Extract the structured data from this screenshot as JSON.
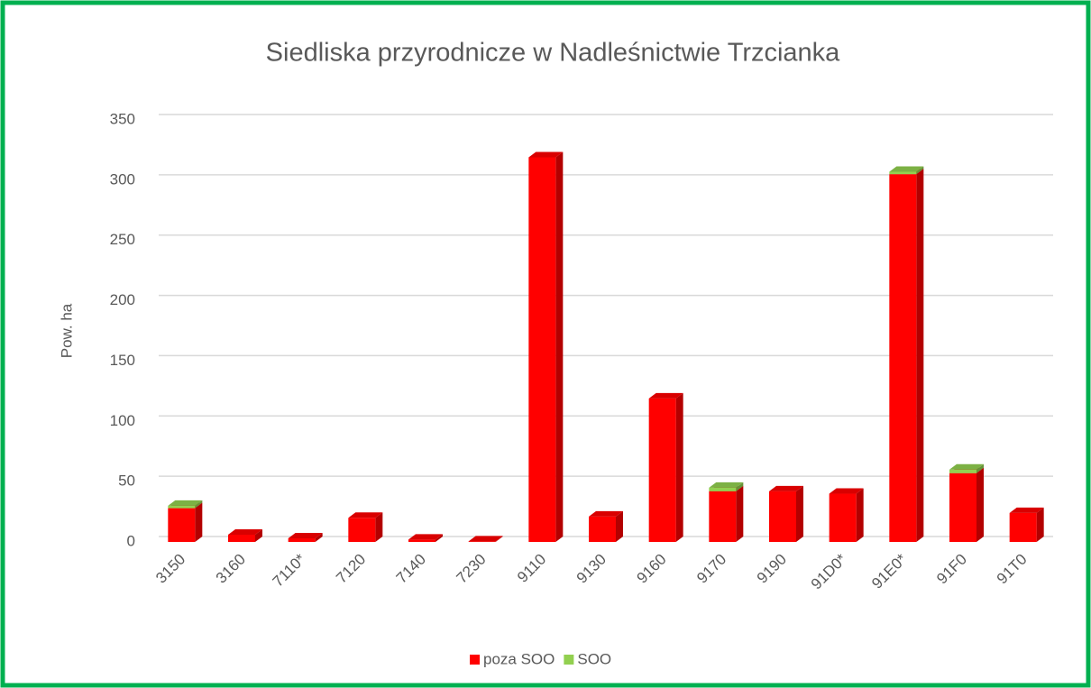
{
  "chart_data": {
    "type": "bar3d_stacked",
    "title": "Siedliska przyrodnicze w Nadleśnictwie Trzcianka",
    "y_label": "Pow. ha",
    "categories": [
      "3150",
      "3160",
      "7110*",
      "7120",
      "7140",
      "7230",
      "9110",
      "9130",
      "9160",
      "9170",
      "9190",
      "91D0*",
      "91E0*",
      "91F0",
      "91T0"
    ],
    "series": [
      {
        "name": "poza SOO",
        "color": "#ff0000",
        "values": [
          28,
          6,
          3,
          20,
          2,
          0.5,
          319,
          21,
          119,
          42,
          42,
          40,
          305,
          57,
          24
        ]
      },
      {
        "name": "SOO",
        "color": "#92d050",
        "values": [
          2,
          0,
          0,
          0,
          0,
          0,
          0,
          0,
          0,
          3,
          0,
          0,
          2,
          3,
          0
        ]
      }
    ],
    "ylim": [
      0,
      350
    ],
    "yticks": [
      0,
      50,
      100,
      150,
      200,
      250,
      300,
      350
    ],
    "grid": true,
    "legend": "bottom"
  }
}
